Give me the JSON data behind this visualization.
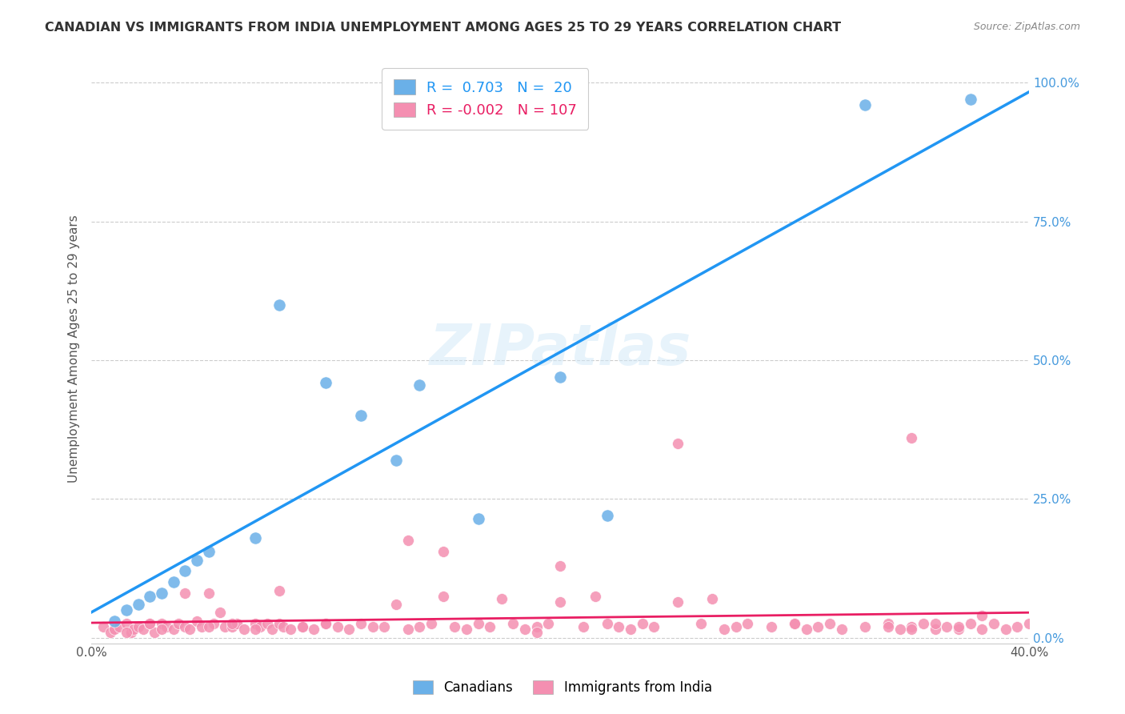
{
  "title": "CANADIAN VS IMMIGRANTS FROM INDIA UNEMPLOYMENT AMONG AGES 25 TO 29 YEARS CORRELATION CHART",
  "source": "Source: ZipAtlas.com",
  "ylabel": "Unemployment Among Ages 25 to 29 years",
  "xlabel_bottom": "",
  "xmin": 0.0,
  "xmax": 0.4,
  "ymin": -0.01,
  "ymax": 1.05,
  "right_yticks": [
    0.0,
    0.25,
    0.5,
    0.75,
    1.0
  ],
  "right_yticklabels": [
    "0.0%",
    "25.0%",
    "50.0%",
    "75.0%",
    "100.0%"
  ],
  "bottom_xticks": [
    0.0,
    0.05,
    0.1,
    0.15,
    0.2,
    0.25,
    0.3,
    0.35,
    0.4
  ],
  "bottom_xticklabels": [
    "0.0%",
    "",
    "",
    "",
    "",
    "",
    "",
    "",
    "40.0%"
  ],
  "legend_r_canadian": "0.703",
  "legend_n_canadian": "20",
  "legend_r_india": "-0.002",
  "legend_n_india": "107",
  "canadian_color": "#6ab0e8",
  "india_color": "#f48fb1",
  "trendline_canadian_color": "#2196F3",
  "trendline_india_color": "#e91e63",
  "watermark": "ZIPatlas",
  "canadians_x": [
    0.01,
    0.015,
    0.02,
    0.025,
    0.03,
    0.035,
    0.04,
    0.045,
    0.05,
    0.07,
    0.08,
    0.1,
    0.115,
    0.13,
    0.14,
    0.165,
    0.2,
    0.22,
    0.33,
    0.375
  ],
  "canadians_y": [
    0.03,
    0.05,
    0.06,
    0.075,
    0.08,
    0.1,
    0.12,
    0.14,
    0.155,
    0.18,
    0.6,
    0.46,
    0.4,
    0.32,
    0.455,
    0.215,
    0.47,
    0.22,
    0.96,
    0.97
  ],
  "india_x": [
    0.005,
    0.008,
    0.01,
    0.012,
    0.015,
    0.017,
    0.018,
    0.02,
    0.022,
    0.025,
    0.027,
    0.03,
    0.032,
    0.035,
    0.037,
    0.04,
    0.042,
    0.045,
    0.047,
    0.05,
    0.052,
    0.055,
    0.057,
    0.06,
    0.062,
    0.065,
    0.07,
    0.072,
    0.075,
    0.077,
    0.08,
    0.082,
    0.085,
    0.09,
    0.095,
    0.1,
    0.105,
    0.11,
    0.115,
    0.12,
    0.125,
    0.13,
    0.135,
    0.14,
    0.145,
    0.15,
    0.155,
    0.16,
    0.165,
    0.17,
    0.175,
    0.18,
    0.185,
    0.19,
    0.195,
    0.2,
    0.21,
    0.215,
    0.22,
    0.225,
    0.23,
    0.235,
    0.24,
    0.25,
    0.26,
    0.265,
    0.27,
    0.275,
    0.28,
    0.29,
    0.3,
    0.305,
    0.31,
    0.315,
    0.32,
    0.33,
    0.34,
    0.345,
    0.35,
    0.355,
    0.36,
    0.365,
    0.37,
    0.375,
    0.38,
    0.385,
    0.39,
    0.395,
    0.4,
    0.38,
    0.37,
    0.36,
    0.35,
    0.34,
    0.025,
    0.03,
    0.04,
    0.05,
    0.06,
    0.07,
    0.08,
    0.09,
    0.1,
    0.15,
    0.2,
    0.25,
    0.3,
    0.35,
    0.015,
    0.135,
    0.19
  ],
  "india_y": [
    0.02,
    0.01,
    0.015,
    0.02,
    0.025,
    0.01,
    0.015,
    0.02,
    0.015,
    0.025,
    0.01,
    0.025,
    0.02,
    0.015,
    0.025,
    0.02,
    0.015,
    0.03,
    0.02,
    0.08,
    0.025,
    0.045,
    0.02,
    0.02,
    0.025,
    0.015,
    0.025,
    0.02,
    0.025,
    0.015,
    0.025,
    0.02,
    0.015,
    0.02,
    0.015,
    0.025,
    0.02,
    0.015,
    0.025,
    0.02,
    0.02,
    0.06,
    0.015,
    0.02,
    0.025,
    0.075,
    0.02,
    0.015,
    0.025,
    0.02,
    0.07,
    0.025,
    0.015,
    0.02,
    0.025,
    0.065,
    0.02,
    0.075,
    0.025,
    0.02,
    0.015,
    0.025,
    0.02,
    0.065,
    0.025,
    0.07,
    0.015,
    0.02,
    0.025,
    0.02,
    0.025,
    0.015,
    0.02,
    0.025,
    0.015,
    0.02,
    0.025,
    0.015,
    0.02,
    0.025,
    0.015,
    0.02,
    0.015,
    0.025,
    0.04,
    0.025,
    0.015,
    0.02,
    0.025,
    0.015,
    0.02,
    0.025,
    0.015,
    0.02,
    0.025,
    0.015,
    0.08,
    0.02,
    0.025,
    0.015,
    0.085,
    0.02,
    0.025,
    0.155,
    0.13,
    0.35,
    0.025,
    0.36,
    0.01,
    0.175,
    0.01
  ]
}
